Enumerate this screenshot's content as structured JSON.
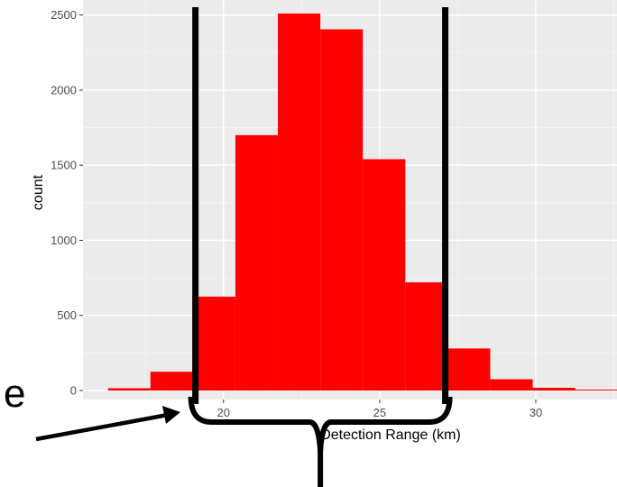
{
  "chart_data": {
    "type": "bar",
    "subtype": "histogram",
    "xlabel": "Detection Range (km)",
    "ylabel": "count",
    "xlim": [
      15.5,
      32.6
    ],
    "ylim": [
      -60,
      2600
    ],
    "x_ticks": [
      20,
      25,
      30
    ],
    "y_ticks": [
      0,
      500,
      1000,
      1500,
      2000,
      2500
    ],
    "grid": true,
    "background": "#ebebeb",
    "bar_color": "#ff0000",
    "bin_width": 1.36,
    "bins": [
      {
        "x0": 16.3,
        "x1": 17.66,
        "count": 15
      },
      {
        "x0": 17.66,
        "x1": 19.02,
        "count": 125
      },
      {
        "x0": 19.02,
        "x1": 20.38,
        "count": 625
      },
      {
        "x0": 20.38,
        "x1": 21.74,
        "count": 1700
      },
      {
        "x0": 21.74,
        "x1": 23.1,
        "count": 2510
      },
      {
        "x0": 23.1,
        "x1": 24.46,
        "count": 2405
      },
      {
        "x0": 24.46,
        "x1": 25.82,
        "count": 1540
      },
      {
        "x0": 25.82,
        "x1": 27.18,
        "count": 720
      },
      {
        "x0": 27.18,
        "x1": 28.54,
        "count": 280
      },
      {
        "x0": 28.54,
        "x1": 29.9,
        "count": 75
      },
      {
        "x0": 29.9,
        "x1": 31.26,
        "count": 18
      },
      {
        "x0": 31.26,
        "x1": 32.62,
        "count": 6
      }
    ],
    "annotations": {
      "vertical_lines_x": [
        19.1,
        27.1
      ],
      "bracket_range": [
        19.1,
        27.1
      ],
      "side_text": "e"
    }
  }
}
